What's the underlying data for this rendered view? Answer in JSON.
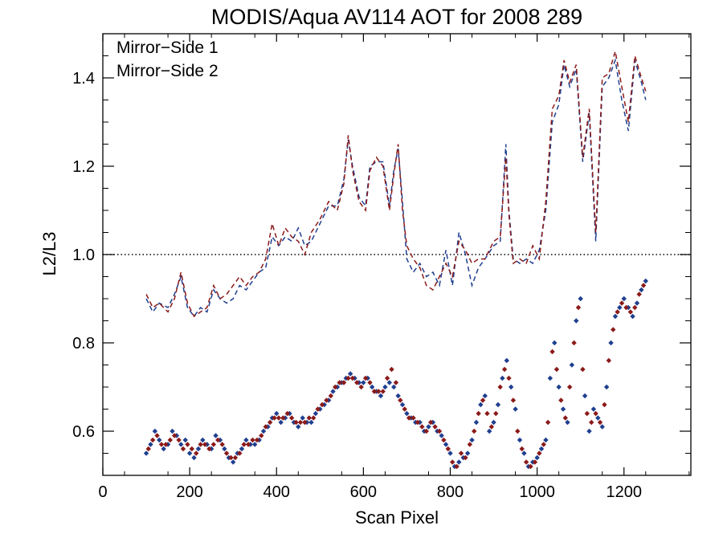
{
  "chart_data": {
    "type": "scatter",
    "title": "MODIS/Aqua AV114 AOT for 2008 289",
    "xlabel": "Scan Pixel",
    "ylabel": "L2/L3",
    "xlim": [
      0,
      1354
    ],
    "ylim": [
      0.5,
      1.5
    ],
    "x_ticks": [
      0,
      200,
      400,
      600,
      800,
      1000,
      1200
    ],
    "y_ticks": [
      0.6,
      0.8,
      1.0,
      1.2,
      1.4
    ],
    "x_tick_labels": [
      "0",
      "200",
      "400",
      "600",
      "800",
      "1000",
      "1200"
    ],
    "y_tick_labels": [
      "0.6",
      "0.8",
      "1.0",
      "1.2",
      "1.4"
    ],
    "reference_line": {
      "y": 1.0,
      "style": "dotted"
    },
    "legend": {
      "placement": "top-left",
      "entries": [
        "Mirror−Side 1",
        "Mirror−Side 2"
      ]
    },
    "colors": {
      "side1": "#1f3f8f",
      "side2": "#8b1a1a"
    },
    "series": [
      {
        "name": "Mirror−Side 1",
        "kind": "dashed-line",
        "x": [
          100,
          115,
          130,
          150,
          165,
          180,
          195,
          210,
          225,
          240,
          255,
          270,
          285,
          300,
          315,
          330,
          345,
          360,
          375,
          390,
          405,
          420,
          435,
          450,
          465,
          480,
          500,
          520,
          540,
          555,
          565,
          575,
          590,
          605,
          615,
          630,
          645,
          660,
          670,
          680,
          690,
          700,
          715,
          730,
          745,
          760,
          775,
          790,
          805,
          820,
          835,
          850,
          865,
          880,
          900,
          915,
          928,
          935,
          945,
          960,
          975,
          990,
          1005,
          1020,
          1035,
          1050,
          1062,
          1075,
          1090,
          1105,
          1120,
          1135,
          1150,
          1165,
          1180,
          1195,
          1210,
          1225,
          1240,
          1250
        ],
        "y": [
          0.9,
          0.87,
          0.89,
          0.88,
          0.91,
          0.95,
          0.88,
          0.86,
          0.88,
          0.87,
          0.92,
          0.9,
          0.89,
          0.9,
          0.93,
          0.92,
          0.94,
          0.96,
          0.97,
          1.04,
          1.02,
          1.04,
          1.03,
          1.06,
          1.02,
          1.03,
          1.07,
          1.11,
          1.11,
          1.17,
          1.26,
          1.2,
          1.13,
          1.11,
          1.2,
          1.21,
          1.21,
          1.11,
          1.19,
          1.24,
          1.12,
          0.99,
          0.96,
          0.98,
          0.95,
          0.96,
          0.93,
          1.01,
          0.93,
          1.05,
          1.0,
          0.93,
          0.97,
          0.99,
          1.02,
          1.03,
          1.25,
          1.1,
          0.99,
          0.98,
          0.99,
          0.98,
          1.01,
          1.1,
          1.3,
          1.34,
          1.43,
          1.38,
          1.42,
          1.21,
          1.32,
          1.03,
          1.38,
          1.4,
          1.44,
          1.35,
          1.28,
          1.44,
          1.39,
          1.35
        ]
      },
      {
        "name": "Mirror−Side 2",
        "kind": "dashed-line",
        "x": [
          100,
          115,
          130,
          150,
          165,
          180,
          195,
          210,
          225,
          240,
          255,
          270,
          285,
          300,
          315,
          330,
          345,
          360,
          375,
          390,
          405,
          420,
          435,
          450,
          465,
          480,
          500,
          520,
          540,
          555,
          565,
          575,
          590,
          605,
          615,
          630,
          645,
          660,
          670,
          680,
          690,
          700,
          715,
          730,
          745,
          760,
          775,
          790,
          805,
          820,
          835,
          850,
          865,
          880,
          900,
          915,
          928,
          935,
          945,
          960,
          975,
          990,
          1005,
          1020,
          1035,
          1050,
          1062,
          1075,
          1090,
          1105,
          1120,
          1135,
          1150,
          1165,
          1180,
          1195,
          1210,
          1225,
          1240,
          1250
        ],
        "y": [
          0.91,
          0.88,
          0.89,
          0.87,
          0.9,
          0.96,
          0.89,
          0.86,
          0.87,
          0.88,
          0.93,
          0.9,
          0.91,
          0.93,
          0.95,
          0.93,
          0.95,
          0.96,
          0.99,
          1.07,
          1.02,
          1.06,
          1.04,
          1.03,
          1.0,
          1.05,
          1.08,
          1.12,
          1.1,
          1.16,
          1.27,
          1.19,
          1.12,
          1.1,
          1.19,
          1.22,
          1.2,
          1.1,
          1.18,
          1.25,
          1.1,
          1.02,
          0.99,
          0.97,
          0.93,
          0.92,
          0.95,
          0.98,
          0.95,
          1.03,
          1.01,
          0.98,
          0.99,
          0.99,
          1.03,
          1.04,
          1.22,
          1.09,
          0.98,
          0.99,
          0.98,
          1.02,
          0.99,
          1.12,
          1.33,
          1.36,
          1.44,
          1.39,
          1.43,
          1.22,
          1.33,
          1.05,
          1.4,
          1.41,
          1.46,
          1.38,
          1.3,
          1.45,
          1.4,
          1.37
        ]
      },
      {
        "name": "Mirror−Side 1",
        "kind": "points",
        "x": [
          100,
          110,
          120,
          130,
          140,
          150,
          160,
          170,
          180,
          190,
          200,
          210,
          220,
          230,
          240,
          250,
          260,
          270,
          280,
          290,
          300,
          310,
          320,
          330,
          340,
          350,
          360,
          370,
          380,
          390,
          400,
          410,
          420,
          430,
          440,
          450,
          460,
          470,
          480,
          490,
          500,
          510,
          520,
          530,
          540,
          550,
          560,
          570,
          580,
          590,
          600,
          610,
          620,
          630,
          640,
          650,
          660,
          670,
          680,
          690,
          700,
          710,
          720,
          730,
          740,
          750,
          760,
          770,
          780,
          790,
          800,
          810,
          820,
          830,
          840,
          850,
          860,
          870,
          880,
          890,
          900,
          910,
          920,
          930,
          940,
          950,
          960,
          970,
          980,
          990,
          1000,
          1010,
          1020,
          1030,
          1040,
          1050,
          1060,
          1070,
          1080,
          1090,
          1100,
          1110,
          1120,
          1130,
          1140,
          1150,
          1160,
          1170,
          1180,
          1190,
          1200,
          1210,
          1220,
          1230,
          1240,
          1250
        ],
        "y": [
          0.55,
          0.57,
          0.6,
          0.58,
          0.56,
          0.57,
          0.6,
          0.59,
          0.57,
          0.58,
          0.55,
          0.54,
          0.56,
          0.58,
          0.57,
          0.56,
          0.59,
          0.58,
          0.56,
          0.54,
          0.53,
          0.55,
          0.56,
          0.58,
          0.57,
          0.57,
          0.58,
          0.6,
          0.61,
          0.63,
          0.64,
          0.62,
          0.63,
          0.64,
          0.62,
          0.61,
          0.63,
          0.62,
          0.62,
          0.64,
          0.65,
          0.66,
          0.67,
          0.69,
          0.7,
          0.71,
          0.72,
          0.73,
          0.72,
          0.71,
          0.71,
          0.72,
          0.7,
          0.69,
          0.68,
          0.7,
          0.71,
          0.7,
          0.68,
          0.66,
          0.64,
          0.63,
          0.62,
          0.62,
          0.6,
          0.61,
          0.62,
          0.6,
          0.59,
          0.57,
          0.55,
          0.52,
          0.53,
          0.54,
          0.55,
          0.58,
          0.62,
          0.66,
          0.68,
          0.6,
          0.62,
          0.66,
          0.72,
          0.76,
          0.7,
          0.65,
          0.58,
          0.55,
          0.52,
          0.53,
          0.54,
          0.56,
          0.58,
          0.72,
          0.8,
          0.7,
          0.65,
          0.62,
          0.75,
          0.85,
          0.9,
          0.68,
          0.6,
          0.65,
          0.63,
          0.61,
          0.7,
          0.8,
          0.86,
          0.88,
          0.9,
          0.88,
          0.86,
          0.89,
          0.92,
          0.94
        ]
      },
      {
        "name": "Mirror−Side 2",
        "kind": "points",
        "x": [
          105,
          115,
          125,
          135,
          145,
          155,
          165,
          175,
          185,
          195,
          205,
          215,
          225,
          235,
          245,
          255,
          265,
          275,
          285,
          295,
          305,
          315,
          325,
          335,
          345,
          355,
          365,
          375,
          385,
          395,
          405,
          415,
          425,
          435,
          445,
          455,
          465,
          475,
          485,
          495,
          505,
          515,
          525,
          535,
          545,
          555,
          565,
          575,
          585,
          595,
          605,
          615,
          625,
          635,
          645,
          655,
          665,
          675,
          685,
          695,
          705,
          715,
          725,
          735,
          745,
          755,
          765,
          775,
          785,
          795,
          805,
          815,
          825,
          835,
          845,
          855,
          865,
          875,
          885,
          895,
          905,
          915,
          925,
          935,
          945,
          955,
          965,
          975,
          985,
          995,
          1005,
          1015,
          1025,
          1035,
          1045,
          1055,
          1065,
          1075,
          1085,
          1095,
          1105,
          1115,
          1125,
          1135,
          1145,
          1155,
          1165,
          1175,
          1185,
          1195,
          1205,
          1215,
          1225,
          1235,
          1245
        ],
        "y": [
          0.56,
          0.58,
          0.59,
          0.57,
          0.57,
          0.58,
          0.59,
          0.58,
          0.56,
          0.57,
          0.56,
          0.55,
          0.57,
          0.57,
          0.56,
          0.57,
          0.58,
          0.57,
          0.55,
          0.54,
          0.54,
          0.55,
          0.57,
          0.57,
          0.58,
          0.58,
          0.59,
          0.61,
          0.62,
          0.63,
          0.63,
          0.63,
          0.64,
          0.63,
          0.62,
          0.62,
          0.62,
          0.63,
          0.63,
          0.65,
          0.66,
          0.67,
          0.68,
          0.7,
          0.71,
          0.71,
          0.72,
          0.72,
          0.71,
          0.7,
          0.72,
          0.71,
          0.69,
          0.69,
          0.69,
          0.72,
          0.74,
          0.71,
          0.67,
          0.65,
          0.63,
          0.63,
          0.62,
          0.61,
          0.6,
          0.62,
          0.61,
          0.6,
          0.58,
          0.56,
          0.53,
          0.52,
          0.55,
          0.54,
          0.57,
          0.6,
          0.64,
          0.67,
          0.64,
          0.61,
          0.64,
          0.7,
          0.74,
          0.72,
          0.67,
          0.6,
          0.56,
          0.53,
          0.52,
          0.53,
          0.55,
          0.57,
          0.62,
          0.78,
          0.74,
          0.67,
          0.63,
          0.7,
          0.8,
          0.88,
          0.74,
          0.64,
          0.62,
          0.64,
          0.62,
          0.66,
          0.76,
          0.83,
          0.87,
          0.89,
          0.88,
          0.87,
          0.88,
          0.91,
          0.93
        ]
      }
    ]
  }
}
